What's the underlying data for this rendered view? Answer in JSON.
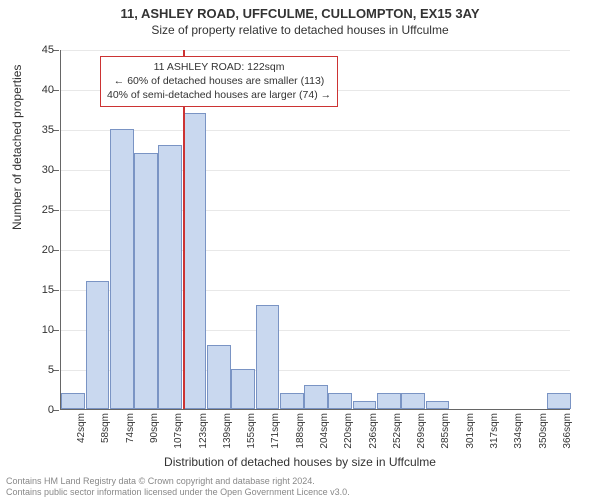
{
  "title": {
    "main": "11, ASHLEY ROAD, UFFCULME, CULLOMPTON, EX15 3AY",
    "sub": "Size of property relative to detached houses in Uffculme"
  },
  "chart": {
    "type": "histogram",
    "ylabel": "Number of detached properties",
    "xlabel": "Distribution of detached houses by size in Uffculme",
    "ylim": [
      0,
      45
    ],
    "ytick_step": 5,
    "yticks": [
      0,
      5,
      10,
      15,
      20,
      25,
      30,
      35,
      40,
      45
    ],
    "bar_fill": "#c9d8ef",
    "bar_stroke": "#7a94c4",
    "background_color": "#ffffff",
    "axis_color": "#666666",
    "marker_color": "#cc3333",
    "marker_category_index": 5,
    "label_fontsize": 12,
    "tick_fontsize": 11,
    "title_fontsize_main": 13,
    "title_fontsize_sub": 12,
    "categories": [
      "42sqm",
      "58sqm",
      "74sqm",
      "90sqm",
      "107sqm",
      "123sqm",
      "139sqm",
      "155sqm",
      "171sqm",
      "188sqm",
      "204sqm",
      "220sqm",
      "236sqm",
      "252sqm",
      "269sqm",
      "285sqm",
      "301sqm",
      "317sqm",
      "334sqm",
      "350sqm",
      "366sqm"
    ],
    "values": [
      2,
      16,
      35,
      32,
      33,
      37,
      8,
      5,
      13,
      2,
      3,
      2,
      1,
      2,
      2,
      1,
      0,
      0,
      0,
      0,
      2
    ]
  },
  "annotation": {
    "line1": "11 ASHLEY ROAD: 122sqm",
    "line2": "← 60% of detached houses are smaller (113)",
    "line3": "40% of semi-detached houses are larger (74) →",
    "border_color": "#cc3333",
    "fontsize": 10.5
  },
  "footer": {
    "line1": "Contains HM Land Registry data © Crown copyright and database right 2024.",
    "line2": "Contains public sector information licensed under the Open Government Licence v3.0."
  }
}
